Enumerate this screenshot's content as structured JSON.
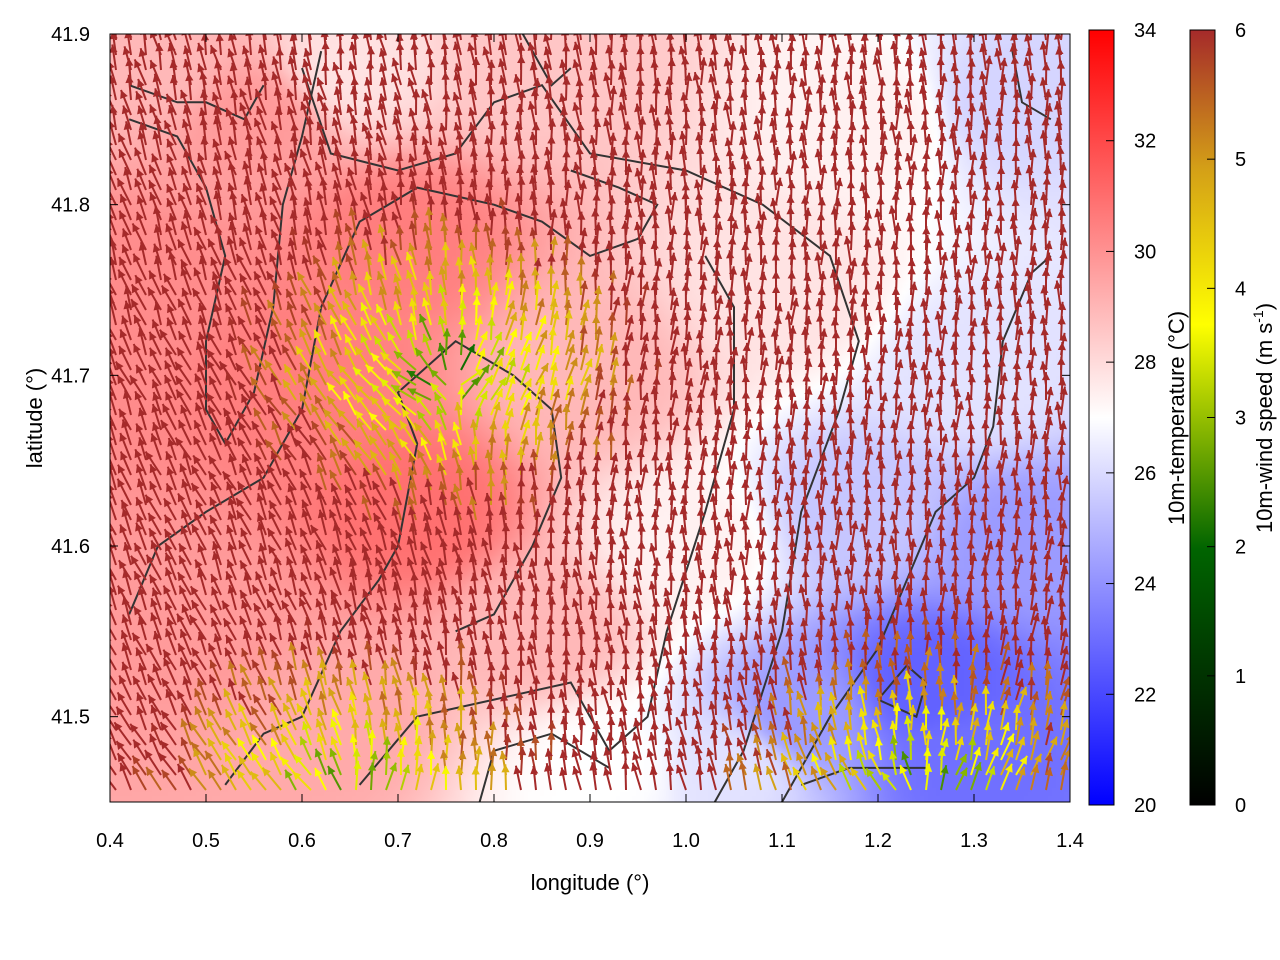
{
  "chart_data": {
    "type": "heatmap",
    "title": "",
    "xlabel": "longitude (°)",
    "ylabel": "latitude (°)",
    "xlim": [
      0.4,
      1.4
    ],
    "ylim": [
      41.45,
      41.9
    ],
    "x_ticks": [
      "0.4",
      "0.5",
      "0.6",
      "0.7",
      "0.8",
      "0.9",
      "1.0",
      "1.1",
      "1.2",
      "1.3",
      "1.4"
    ],
    "y_ticks": [
      "41.5",
      "41.6",
      "41.7",
      "41.8",
      "41.9"
    ],
    "grid": false,
    "temperature_colorbar": {
      "label": "10m-temperature (°C)",
      "range": [
        20,
        34
      ],
      "ticks": [
        "20",
        "22",
        "24",
        "26",
        "28",
        "30",
        "32",
        "34"
      ],
      "colors": [
        "#0000ff",
        "#ffffff",
        "#ff0000"
      ]
    },
    "wind_colorbar": {
      "label_main": "10m-wind speed (m s",
      "label_sup": "-1",
      "label_end": ")",
      "range": [
        0,
        6
      ],
      "ticks": [
        "0",
        "1",
        "2",
        "3",
        "4",
        "5",
        "6"
      ],
      "colors": [
        "#000000",
        "#006400",
        "#ffff00",
        "#d4a017",
        "#a52a2a"
      ]
    },
    "temperature_field": [
      {
        "lon": 0.42,
        "lat": 41.75,
        "t": 31.0
      },
      {
        "lon": 0.55,
        "lat": 41.85,
        "t": 30.5
      },
      {
        "lon": 0.6,
        "lat": 41.7,
        "t": 31.5
      },
      {
        "lon": 0.72,
        "lat": 41.62,
        "t": 32.0
      },
      {
        "lon": 0.7,
        "lat": 41.78,
        "t": 31.5
      },
      {
        "lon": 0.85,
        "lat": 41.88,
        "t": 29.0
      },
      {
        "lon": 0.9,
        "lat": 41.7,
        "t": 29.5
      },
      {
        "lon": 0.5,
        "lat": 41.55,
        "t": 30.5
      },
      {
        "lon": 0.62,
        "lat": 41.5,
        "t": 30.0
      },
      {
        "lon": 0.85,
        "lat": 41.55,
        "t": 29.5
      },
      {
        "lon": 1.0,
        "lat": 41.6,
        "t": 27.5
      },
      {
        "lon": 1.1,
        "lat": 41.75,
        "t": 28.0
      },
      {
        "lon": 1.2,
        "lat": 41.85,
        "t": 27.5
      },
      {
        "lon": 1.33,
        "lat": 41.86,
        "t": 25.5
      },
      {
        "lon": 1.3,
        "lat": 41.7,
        "t": 26.0
      },
      {
        "lon": 1.35,
        "lat": 41.6,
        "t": 23.5
      },
      {
        "lon": 1.25,
        "lat": 41.52,
        "t": 21.5
      },
      {
        "lon": 1.3,
        "lat": 41.47,
        "t": 22.0
      },
      {
        "lon": 1.12,
        "lat": 41.5,
        "t": 23.5
      },
      {
        "lon": 1.05,
        "lat": 41.47,
        "t": 26.0
      },
      {
        "lon": 0.92,
        "lat": 41.47,
        "t": 27.0
      },
      {
        "lon": 1.18,
        "lat": 41.62,
        "t": 25.0
      },
      {
        "lon": 0.45,
        "lat": 41.88,
        "t": 29.5
      },
      {
        "lon": 0.65,
        "lat": 41.88,
        "t": 28.0
      }
    ],
    "wind_sources": [
      {
        "lon": 1.25,
        "lat": 41.45,
        "s": 1.0
      },
      {
        "lon": 0.75,
        "lat": 41.7,
        "s": 1.2
      },
      {
        "lon": 0.65,
        "lat": 41.45,
        "s": 0.8
      }
    ],
    "isotherms": [
      [
        [
          0.42,
          41.85
        ],
        [
          0.47,
          41.84
        ],
        [
          0.5,
          41.81
        ],
        [
          0.52,
          41.77
        ],
        [
          0.5,
          41.72
        ],
        [
          0.5,
          41.68
        ],
        [
          0.52,
          41.66
        ],
        [
          0.55,
          41.69
        ],
        [
          0.57,
          41.74
        ],
        [
          0.58,
          41.8
        ],
        [
          0.6,
          41.84
        ],
        [
          0.62,
          41.89
        ]
      ],
      [
        [
          0.42,
          41.87
        ],
        [
          0.47,
          41.86
        ],
        [
          0.5,
          41.86
        ],
        [
          0.54,
          41.85
        ],
        [
          0.56,
          41.87
        ]
      ],
      [
        [
          0.6,
          41.88
        ],
        [
          0.63,
          41.83
        ],
        [
          0.7,
          41.82
        ],
        [
          0.76,
          41.83
        ],
        [
          0.8,
          41.86
        ],
        [
          0.85,
          41.87
        ],
        [
          0.9,
          41.83
        ],
        [
          1.0,
          41.82
        ],
        [
          1.08,
          41.8
        ],
        [
          1.15,
          41.77
        ],
        [
          1.18,
          41.72
        ],
        [
          1.16,
          41.68
        ],
        [
          1.12,
          41.62
        ],
        [
          1.1,
          41.55
        ],
        [
          1.06,
          41.48
        ],
        [
          1.03,
          41.45
        ]
      ],
      [
        [
          0.42,
          41.56
        ],
        [
          0.45,
          41.6
        ],
        [
          0.5,
          41.62
        ],
        [
          0.56,
          41.64
        ],
        [
          0.6,
          41.68
        ],
        [
          0.62,
          41.74
        ],
        [
          0.66,
          41.79
        ],
        [
          0.72,
          41.81
        ],
        [
          0.8,
          41.8
        ],
        [
          0.85,
          41.79
        ],
        [
          0.9,
          41.77
        ],
        [
          0.95,
          41.78
        ],
        [
          0.97,
          41.8
        ],
        [
          0.93,
          41.81
        ],
        [
          0.88,
          41.82
        ]
      ],
      [
        [
          0.52,
          41.46
        ],
        [
          0.56,
          41.49
        ],
        [
          0.6,
          41.5
        ],
        [
          0.64,
          41.55
        ],
        [
          0.68,
          41.58
        ],
        [
          0.7,
          41.6
        ],
        [
          0.72,
          41.66
        ],
        [
          0.7,
          41.69
        ],
        [
          0.76,
          41.72
        ],
        [
          0.82,
          41.7
        ],
        [
          0.86,
          41.68
        ],
        [
          0.87,
          41.64
        ],
        [
          0.84,
          41.6
        ],
        [
          0.8,
          41.56
        ],
        [
          0.76,
          41.55
        ]
      ],
      [
        [
          0.66,
          41.46
        ],
        [
          0.72,
          41.5
        ],
        [
          0.8,
          41.51
        ],
        [
          0.88,
          41.52
        ],
        [
          0.92,
          41.48
        ],
        [
          0.96,
          41.5
        ],
        [
          0.98,
          41.55
        ],
        [
          1.02,
          41.62
        ],
        [
          1.05,
          41.68
        ],
        [
          1.05,
          41.74
        ],
        [
          1.02,
          41.77
        ]
      ],
      [
        [
          1.1,
          41.45
        ],
        [
          1.15,
          41.5
        ],
        [
          1.2,
          41.54
        ],
        [
          1.23,
          41.58
        ],
        [
          1.26,
          41.62
        ],
        [
          1.3,
          41.64
        ],
        [
          1.32,
          41.67
        ],
        [
          1.33,
          41.72
        ],
        [
          1.36,
          41.76
        ],
        [
          1.38,
          41.77
        ]
      ],
      [
        [
          1.12,
          41.46
        ],
        [
          1.17,
          41.47
        ],
        [
          1.2,
          41.47
        ],
        [
          1.25,
          41.47
        ]
      ],
      [
        [
          1.2,
          41.51
        ],
        [
          1.24,
          41.5
        ],
        [
          1.25,
          41.52
        ],
        [
          1.23,
          41.53
        ],
        [
          1.2,
          41.51
        ]
      ],
      [
        [
          0.78,
          41.44
        ],
        [
          0.8,
          41.48
        ],
        [
          0.86,
          41.49
        ],
        [
          0.92,
          41.47
        ]
      ],
      [
        [
          1.34,
          41.89
        ],
        [
          1.35,
          41.86
        ],
        [
          1.38,
          41.85
        ]
      ],
      [
        [
          0.83,
          41.9
        ],
        [
          0.86,
          41.87
        ],
        [
          0.88,
          41.88
        ]
      ]
    ]
  }
}
